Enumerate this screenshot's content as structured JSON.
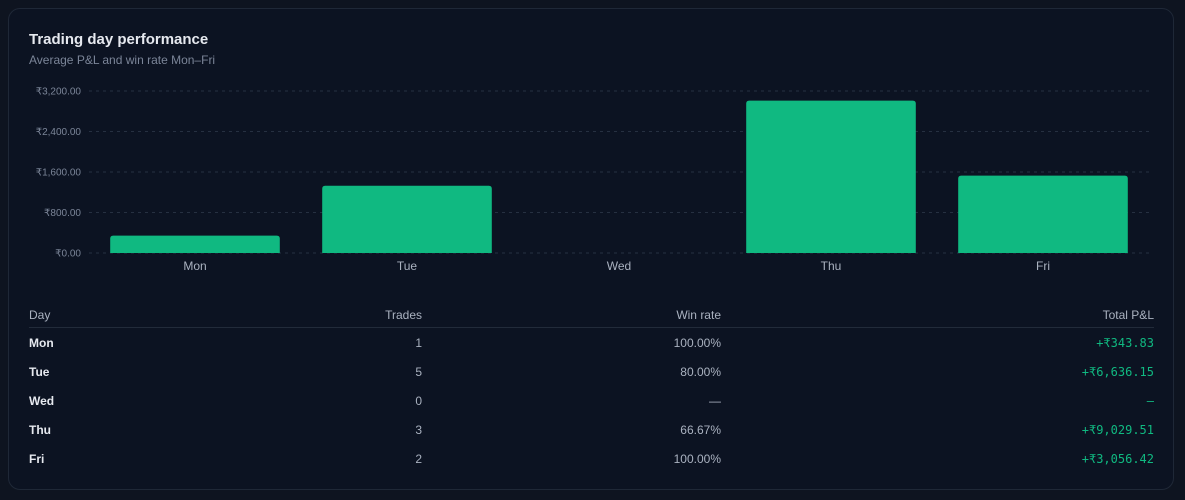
{
  "card": {
    "title": "Trading day performance",
    "subtitle": "Average P&L and win rate Mon–Fri"
  },
  "chart_data": {
    "type": "bar",
    "categories": [
      "Mon",
      "Tue",
      "Wed",
      "Thu",
      "Fri"
    ],
    "values": [
      343.83,
      1327.23,
      0,
      3009.84,
      1528.21
    ],
    "ylim": [
      0,
      3200
    ],
    "yticks": [
      {
        "value": 0,
        "label": "₹0.00"
      },
      {
        "value": 800,
        "label": "₹800.00"
      },
      {
        "value": 1600,
        "label": "₹1,600.00"
      },
      {
        "value": 2400,
        "label": "₹2,400.00"
      },
      {
        "value": 3200,
        "label": "₹3,200.00"
      }
    ],
    "grid": true,
    "bar_color": "#10b981"
  },
  "table": {
    "headers": {
      "day": "Day",
      "trades": "Trades",
      "win_rate": "Win rate",
      "total_pnl": "Total P&L"
    },
    "rows": [
      {
        "day": "Mon",
        "trades": "1",
        "win_rate": "100.00%",
        "total_pnl": "+₹343.83"
      },
      {
        "day": "Tue",
        "trades": "5",
        "win_rate": "80.00%",
        "total_pnl": "+₹6,636.15"
      },
      {
        "day": "Wed",
        "trades": "0",
        "win_rate": "—",
        "total_pnl": "–"
      },
      {
        "day": "Thu",
        "trades": "3",
        "win_rate": "66.67%",
        "total_pnl": "+₹9,029.51"
      },
      {
        "day": "Fri",
        "trades": "2",
        "win_rate": "100.00%",
        "total_pnl": "+₹3,056.42"
      }
    ]
  }
}
